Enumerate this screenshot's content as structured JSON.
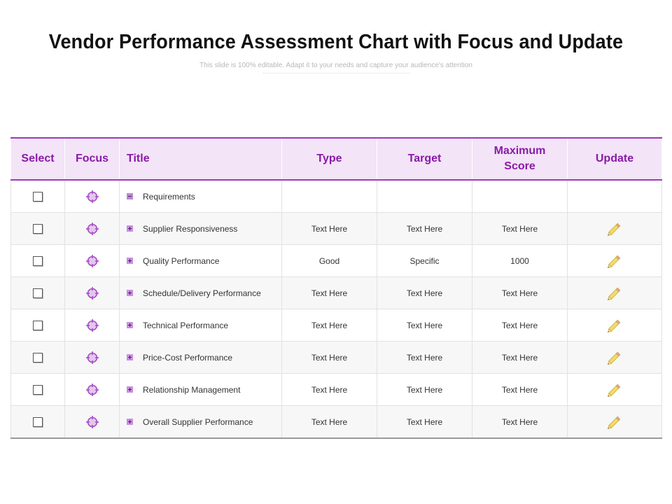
{
  "header": {
    "title": "Vendor Performance Assessment Chart with Focus and Update",
    "subtitle": "This slide is 100% editable. Adapt it to your needs and capture your audience's attention"
  },
  "columns": [
    "Select",
    "Focus",
    "Title",
    "Type",
    "Target",
    "Maximum Score",
    "Update"
  ],
  "colors": {
    "accent": "#8a1aa8",
    "header_bg": "#f3e4f7",
    "icon": "#c98fe0",
    "pencil": "#f2dc6a"
  },
  "icons": {
    "checkbox": "checkbox-icon",
    "focus": "crosshair-target-icon",
    "expand": "plus-icon",
    "collapse": "minus-icon",
    "update": "pencil-icon"
  },
  "rows": [
    {
      "title": "Requirements",
      "toggle": "minus",
      "type": "",
      "target": "",
      "max_score": "",
      "update": false
    },
    {
      "title": "Supplier Responsiveness",
      "toggle": "plus",
      "type": "Text Here",
      "target": "Text Here",
      "max_score": "Text Here",
      "update": true
    },
    {
      "title": "Quality Performance",
      "toggle": "plus",
      "type": "Good",
      "target": "Specific",
      "max_score": "1000",
      "update": true
    },
    {
      "title": "Schedule/Delivery Performance",
      "toggle": "plus",
      "type": "Text Here",
      "target": "Text Here",
      "max_score": "Text Here",
      "update": true
    },
    {
      "title": "Technical Performance",
      "toggle": "plus",
      "type": "Text Here",
      "target": "Text Here",
      "max_score": "Text Here",
      "update": true
    },
    {
      "title": "Price-Cost  Performance",
      "toggle": "plus",
      "type": "Text Here",
      "target": "Text Here",
      "max_score": "Text Here",
      "update": true
    },
    {
      "title": "Relationship Management",
      "toggle": "plus",
      "type": "Text Here",
      "target": "Text Here",
      "max_score": "Text Here",
      "update": true
    },
    {
      "title": "Overall Supplier Performance",
      "toggle": "plus",
      "type": "Text Here",
      "target": "Text Here",
      "max_score": "Text Here",
      "update": true
    }
  ]
}
